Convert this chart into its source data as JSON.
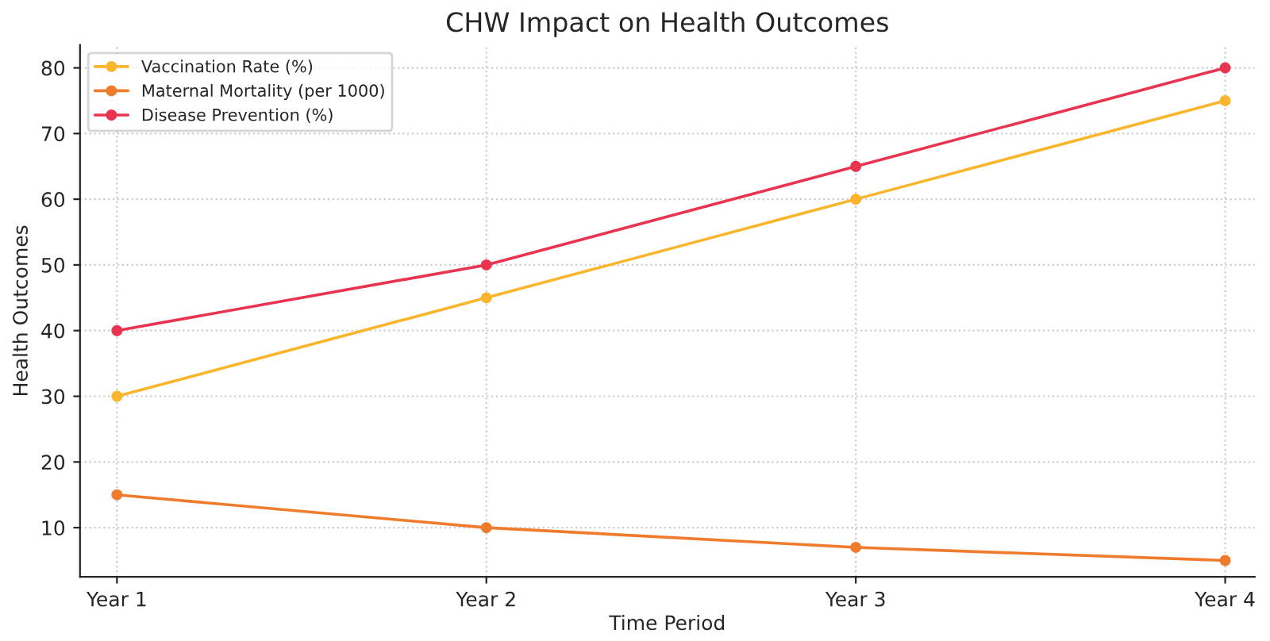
{
  "chart_data": {
    "type": "line",
    "title": "CHW Impact on Health Outcomes",
    "xlabel": "Time Period",
    "ylabel": "Health Outcomes",
    "categories": [
      "Year 1",
      "Year 2",
      "Year 3",
      "Year 4"
    ],
    "series": [
      {
        "name": "Vaccination Rate (%)",
        "color": "#f9b52c",
        "values": [
          30,
          45,
          60,
          75
        ]
      },
      {
        "name": "Maternal Mortality (per 1000)",
        "color": "#ef7b2d",
        "values": [
          15,
          10,
          7,
          5
        ]
      },
      {
        "name": "Disease Prevention (%)",
        "color": "#e8344f",
        "values": [
          40,
          50,
          65,
          80
        ]
      }
    ],
    "ylim": [
      2.5,
      83.5
    ],
    "yticks": [
      10,
      20,
      30,
      40,
      50,
      60,
      70,
      80
    ],
    "grid": true,
    "legend": "top left",
    "marker": "circle",
    "line_style": "solid"
  }
}
